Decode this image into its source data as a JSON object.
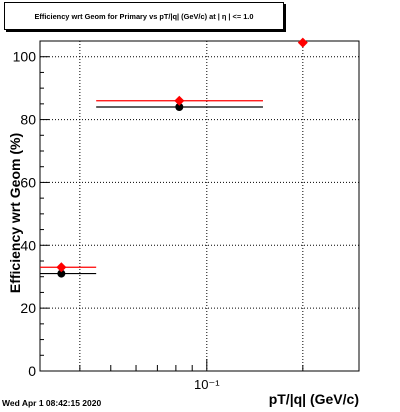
{
  "chart_data": {
    "type": "scatter",
    "title": "Efficiency wrt Geom for Primary vs pT/|q| (GeV/c) at | η | <= 1.0",
    "xlabel": "pT/|q| (GeV/c)",
    "ylabel": "Efficiency wrt Geom (%)",
    "x_scale": "log",
    "xlim": [
      0.03,
      0.3
    ],
    "ylim": [
      0,
      105
    ],
    "y_ticks": [
      0,
      20,
      40,
      60,
      80,
      100
    ],
    "x_tick_labels": [
      "10⁻¹"
    ],
    "grid": true,
    "colors": {
      "series_black": "#000000",
      "series_red": "#ff0000"
    },
    "series": [
      {
        "color": "black",
        "points": [
          {
            "x": 0.035,
            "x_low": 0.03,
            "x_high": 0.045,
            "y": 31.0
          },
          {
            "x": 0.082,
            "x_low": 0.045,
            "x_high": 0.15,
            "y": 84.0
          }
        ]
      },
      {
        "color": "red",
        "points": [
          {
            "x": 0.035,
            "x_low": 0.03,
            "x_high": 0.045,
            "y": 33.0
          },
          {
            "x": 0.082,
            "x_low": 0.045,
            "x_high": 0.15,
            "y": 86.0
          },
          {
            "x": 0.2,
            "y": 104.5
          }
        ]
      }
    ]
  },
  "footer": {
    "timestamp": "Wed Apr  1 08:42:15 2020"
  }
}
